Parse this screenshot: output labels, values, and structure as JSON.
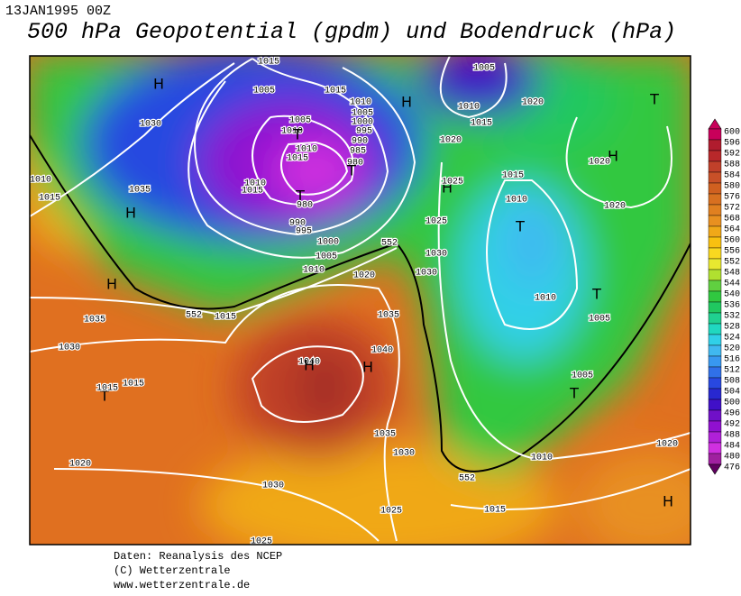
{
  "header": {
    "date": "13JAN1995 00Z",
    "title": "500 hPa Geopotential (gpdm) und Bodendruck (hPa)"
  },
  "legend": {
    "levels": [
      "600",
      "596",
      "592",
      "588",
      "584",
      "580",
      "576",
      "572",
      "568",
      "564",
      "560",
      "556",
      "552",
      "548",
      "544",
      "540",
      "536",
      "532",
      "528",
      "524",
      "520",
      "516",
      "512",
      "508",
      "504",
      "500",
      "496",
      "492",
      "488",
      "484",
      "480",
      "476"
    ]
  },
  "map": {
    "labels": [
      "1015",
      "1005",
      "1015",
      "H",
      "1030",
      "1010",
      "1005",
      "1000",
      "995",
      "990",
      "985",
      "980",
      "1005",
      "1010",
      "1010",
      "1015",
      "T",
      "T",
      "1010",
      "1015",
      "T",
      "980",
      "990",
      "995",
      "1000",
      "1005",
      "1010",
      "552",
      "H",
      "1005",
      "1010",
      "1015",
      "1020",
      "1020",
      "T",
      "H",
      "1020",
      "1015",
      "1010",
      "1020",
      "H",
      "1025",
      "1025",
      "T",
      "1030",
      "1030",
      "1010",
      "T",
      "1005",
      "1005",
      "T",
      "1010",
      "1015",
      "1020",
      "H",
      "552",
      "1010",
      "1015",
      "1035",
      "H",
      "H",
      "1035",
      "552",
      "1015",
      "1030",
      "1020",
      "1035",
      "1040",
      "1040",
      "H",
      "H",
      "T",
      "1015",
      "1015",
      "1020",
      "1030",
      "1035",
      "1030",
      "1025",
      "1025"
    ]
  },
  "footer": {
    "lines": [
      "Daten: Reanalysis des NCEP",
      "(C) Wetterzentrale",
      "www.wetterzentrale.de"
    ]
  }
}
